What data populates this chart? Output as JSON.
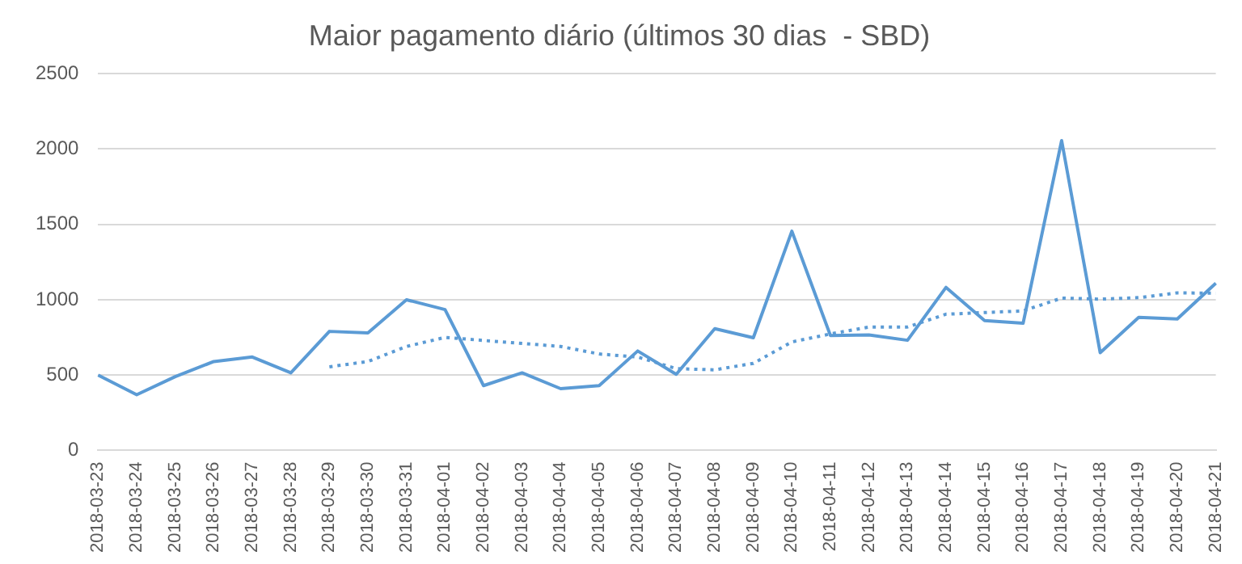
{
  "chart_data": {
    "type": "line",
    "title": "Maior pagamento diário (últimos 30 dias  - SBD)",
    "categories": [
      "2018-03-23",
      "2018-03-24",
      "2018-03-25",
      "2018-03-26",
      "2018-03-27",
      "2018-03-28",
      "2018-03-29",
      "2018-03-30",
      "2018-03-31",
      "2018-04-01",
      "2018-04-02",
      "2018-04-03",
      "2018-04-04",
      "2018-04-05",
      "2018-04-06",
      "2018-04-07",
      "2018-04-08",
      "2018-04-09",
      "2018-04-10",
      "2018-04-11",
      "2018-04-12",
      "2018-04-13",
      "2018-04-14",
      "2018-04-15",
      "2018-04-16",
      "2018-04-17",
      "2018-04-18",
      "2018-04-19",
      "2018-04-20",
      "2018-04-21"
    ],
    "series": [
      {
        "color": "#5b9bd5",
        "line_style": "solid",
        "values": [
          500,
          370,
          490,
          590,
          620,
          515,
          790,
          780,
          1000,
          935,
          430,
          515,
          410,
          430,
          660,
          505,
          808,
          748,
          1455,
          763,
          766,
          731,
          1082,
          862,
          844,
          2056,
          649,
          883,
          872,
          1110
        ]
      },
      {
        "color": "#5b9bd5",
        "line_style": "dotted",
        "values": [
          null,
          null,
          null,
          null,
          null,
          null,
          555,
          590,
          690,
          750,
          730,
          710,
          690,
          640,
          620,
          543,
          535,
          578,
          720,
          773,
          819,
          819,
          904,
          915,
          926,
          1011,
          1004,
          1014,
          1046,
          1043
        ]
      }
    ],
    "ylim": [
      0,
      2500
    ],
    "yticks": [
      0,
      500,
      1000,
      1500,
      2000,
      2500
    ],
    "grid": "y",
    "legend": false,
    "marker": "none"
  }
}
